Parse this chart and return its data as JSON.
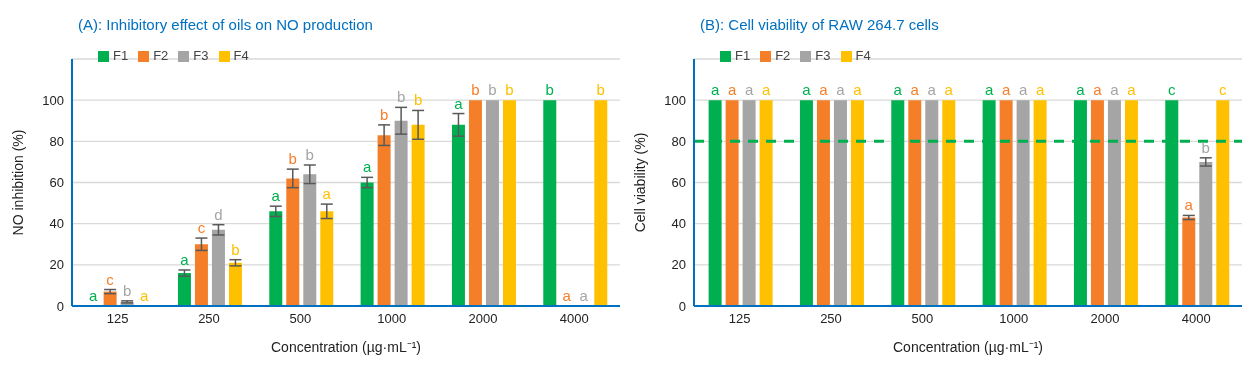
{
  "chart_data": [
    {
      "type": "bar",
      "title": "(A): Inhibitory effect of oils on NO production",
      "xlabel": "Concentration (µg·mL⁻¹)",
      "ylabel": "NO inhibition (%)",
      "categories": [
        "125",
        "250",
        "500",
        "1000",
        "2000",
        "4000"
      ],
      "ylim": [
        0,
        120
      ],
      "yticks": [
        0,
        20,
        40,
        60,
        80,
        100,
        {
          "value": 120,
          "label": null
        }
      ],
      "grid": "y",
      "legend": "top left",
      "series": [
        {
          "name": "F1",
          "color": "#00b050",
          "values": [
            0,
            16,
            46,
            60,
            88,
            100
          ],
          "errors": [
            null,
            1.5,
            2.5,
            2.5,
            5.5,
            0
          ],
          "value_labels": [
            "a",
            "a",
            "a",
            "a",
            "a",
            "b"
          ]
        },
        {
          "name": "F2",
          "color": "#f57f29",
          "values": [
            7,
            30,
            62,
            83,
            100,
            0
          ],
          "errors": [
            1,
            3,
            4.5,
            5,
            0,
            null
          ],
          "value_labels": [
            "c",
            "c",
            "b",
            "b",
            "b",
            "a"
          ]
        },
        {
          "name": "F3",
          "color": "#a5a5a5",
          "values": [
            2,
            37,
            64,
            90,
            100,
            0
          ],
          "errors": [
            0.5,
            2.5,
            4.5,
            6.5,
            0,
            null
          ],
          "value_labels": [
            "b",
            "d",
            "b",
            "b",
            "b",
            "a"
          ]
        },
        {
          "name": "F4",
          "color": "#ffc000",
          "values": [
            0,
            21,
            46,
            88,
            100,
            100
          ],
          "errors": [
            null,
            1.5,
            3.5,
            7,
            0,
            0
          ],
          "value_labels": [
            "a",
            "b",
            "a",
            "b",
            "b",
            "b"
          ]
        }
      ]
    },
    {
      "type": "bar",
      "title": "(B): Cell viability of RAW 264.7 cells",
      "xlabel": "Concentration (µg·mL⁻¹)",
      "ylabel": "Cell viability (%)",
      "categories": [
        "125",
        "250",
        "500",
        "1000",
        "2000",
        "4000"
      ],
      "ylim": [
        0,
        120
      ],
      "yticks": [
        0,
        20,
        40,
        60,
        80,
        100,
        {
          "value": 120,
          "label": null
        }
      ],
      "grid": "y",
      "legend": "top left",
      "series": [
        {
          "name": "F1",
          "color": "#00b050",
          "values": [
            100,
            100,
            100,
            100,
            100,
            100
          ],
          "errors": [
            0,
            0,
            0,
            0,
            0,
            0
          ],
          "value_labels": [
            "a",
            "a",
            "a",
            "a",
            "a",
            "c"
          ]
        },
        {
          "name": "F2",
          "color": "#f57f29",
          "values": [
            100,
            100,
            100,
            100,
            100,
            43
          ],
          "errors": [
            0,
            0,
            0,
            0,
            0,
            1
          ],
          "value_labels": [
            "a",
            "a",
            "a",
            "a",
            "a",
            "a"
          ]
        },
        {
          "name": "F3",
          "color": "#a5a5a5",
          "values": [
            100,
            100,
            100,
            100,
            100,
            70
          ],
          "errors": [
            0,
            0,
            0,
            0,
            0,
            2
          ],
          "value_labels": [
            "a",
            "a",
            "a",
            "a",
            "a",
            "b"
          ]
        },
        {
          "name": "F4",
          "color": "#ffc000",
          "values": [
            100,
            100,
            100,
            100,
            100,
            100
          ],
          "errors": [
            0,
            0,
            0,
            0,
            0,
            0
          ],
          "value_labels": [
            "a",
            "a",
            "a",
            "a",
            "a",
            "c"
          ]
        }
      ],
      "ref_lines": [
        {
          "axis": "y",
          "value": 80,
          "color": "#00b050",
          "line_style": "dashed"
        }
      ]
    }
  ]
}
